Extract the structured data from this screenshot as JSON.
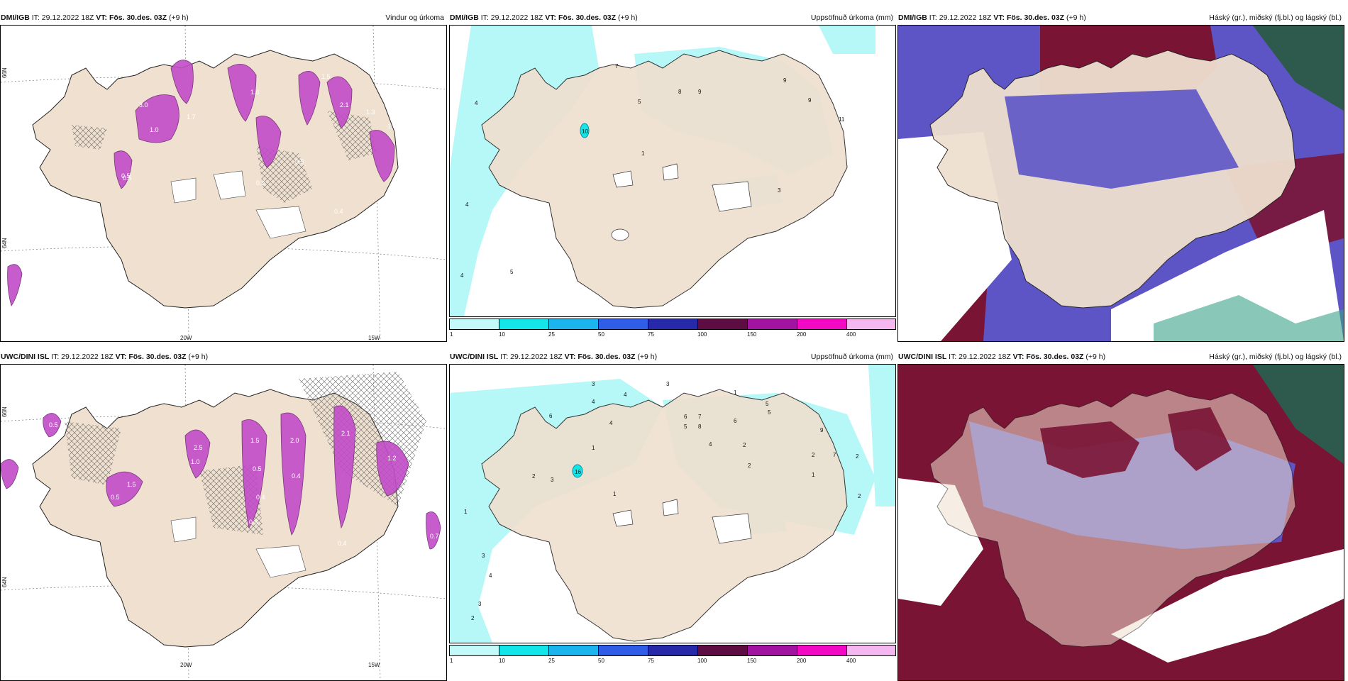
{
  "panels": [
    {
      "id": "top-left",
      "source": "DMI/IGB",
      "it": "IT: 29.12.2022 18Z",
      "vt_label": "VT:",
      "vt": "Fös. 30.des. 03Z",
      "step": "(+9 h)",
      "title": "Vindur og úrkoma",
      "axis_bottom": [
        "20W",
        "15W"
      ],
      "axis_left": [
        "66N",
        "64N"
      ],
      "value_labels": [
        "0.5",
        "3.0",
        "1.7",
        "1.0",
        "1.6",
        "2.1",
        "1.5",
        "0.5",
        "0.5",
        "0.4",
        "0.4",
        "1.3",
        "1.0"
      ]
    },
    {
      "id": "top-middle",
      "source": "DMI/IGB",
      "it": "IT: 29.12.2022 18Z",
      "vt_label": "VT:",
      "vt": "Fös. 30.des. 03Z",
      "step": "(+9 h)",
      "title": "Uppsöfnuð úrkoma (mm)",
      "value_labels": [
        "7",
        "4",
        "5",
        "8",
        "9",
        "9",
        "9",
        "11",
        "10",
        "1",
        "3",
        "4",
        "4",
        "5"
      ],
      "colorbar_ticks": [
        "1",
        "10",
        "25",
        "50",
        "75",
        "100",
        "150",
        "200",
        "400"
      ]
    },
    {
      "id": "top-right",
      "source": "DMI/IGB",
      "it": "IT: 29.12.2022 18Z",
      "vt_label": "VT:",
      "vt": "Fös. 30.des. 03Z",
      "step": "(+9 h)",
      "title": "Háský (gr.), miðský (fj.bl.) og lágský (bl.)"
    },
    {
      "id": "bottom-left",
      "source": "UWC/DINI ISL",
      "it": "IT: 29.12.2022 18Z",
      "vt_label": "VT:",
      "vt": "Fös. 30.des. 03Z",
      "step": "(+9 h)",
      "title": "",
      "axis_bottom": [
        "20W",
        "15W"
      ],
      "axis_left": [
        "66N",
        "64N"
      ],
      "value_labels": [
        "0.5",
        "1.5",
        "0.5",
        "2.5",
        "1.0",
        "1.5",
        "0.5",
        "2.0",
        "0.4",
        "0.4",
        "0.3",
        "2.1",
        "1.2",
        "0.4",
        "0.7"
      ]
    },
    {
      "id": "bottom-middle",
      "source": "UWC/DINI ISL",
      "it": "IT: 29.12.2022 18Z",
      "vt_label": "VT:",
      "vt": "Fös. 30.des. 03Z",
      "step": "(+9 h)",
      "title": "Uppsöfnuð úrkoma (mm)",
      "value_labels": [
        "3",
        "4",
        "4",
        "3",
        "1",
        "5",
        "6",
        "4",
        "6",
        "7",
        "5",
        "8",
        "6",
        "5",
        "4",
        "2",
        "2",
        "16",
        "1",
        "3",
        "1",
        "2",
        "3",
        "4",
        "3",
        "2",
        "1",
        "9",
        "7",
        "2",
        "2",
        "1",
        "2"
      ],
      "colorbar_ticks": [
        "1",
        "10",
        "25",
        "50",
        "75",
        "100",
        "150",
        "200",
        "400"
      ]
    },
    {
      "id": "bottom-right",
      "source": "UWC/DINI ISL",
      "it": "IT: 29.12.2022 18Z",
      "vt_label": "VT:",
      "vt": "Fös. 30.des. 03Z",
      "step": "(+9 h)",
      "title": "Háský (gr.), miðský (fj.bl.) og lágský (bl.)"
    }
  ],
  "colors": {
    "land": "#efe0cf",
    "precip_light": "#b6f7f7",
    "precip_mid": "#5fe8ee",
    "wind_precip": "#c24cc8",
    "cloud_high": "#7a1435",
    "cloud_mid": "#5d55c6",
    "cloud_low": "#2e5a4d"
  },
  "colorbar": [
    "#c4f9f9",
    "#13e5e8",
    "#1cb4ec",
    "#2f5de8",
    "#2629a8",
    "#5e0d42",
    "#a1149f",
    "#f209c4",
    "#f5b7ef"
  ]
}
